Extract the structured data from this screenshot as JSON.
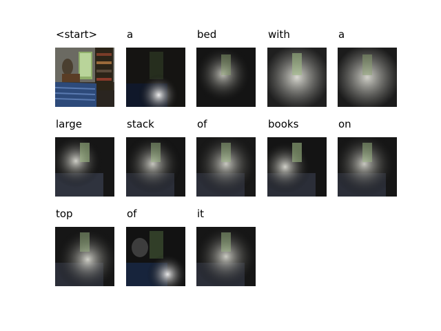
{
  "tokens": [
    {
      "word": "<start>",
      "kind": "original"
    },
    {
      "word": "a",
      "kind": "attention",
      "focus": "lower-right"
    },
    {
      "word": "bed",
      "kind": "attention",
      "focus": "center"
    },
    {
      "word": "with",
      "kind": "attention",
      "focus": "broad"
    },
    {
      "word": "a",
      "kind": "attention",
      "focus": "broad"
    },
    {
      "word": "large",
      "kind": "attention",
      "focus": "upper-left"
    },
    {
      "word": "stack",
      "kind": "attention",
      "focus": "center"
    },
    {
      "word": "of",
      "kind": "attention",
      "focus": "broad"
    },
    {
      "word": "books",
      "kind": "attention",
      "focus": "left-center"
    },
    {
      "word": "on",
      "kind": "attention",
      "focus": "broad"
    },
    {
      "word": "top",
      "kind": "attention",
      "focus": "broad"
    },
    {
      "word": "of",
      "kind": "attention",
      "focus": "lower-right"
    },
    {
      "word": "it",
      "kind": "attention",
      "focus": "broad"
    }
  ]
}
